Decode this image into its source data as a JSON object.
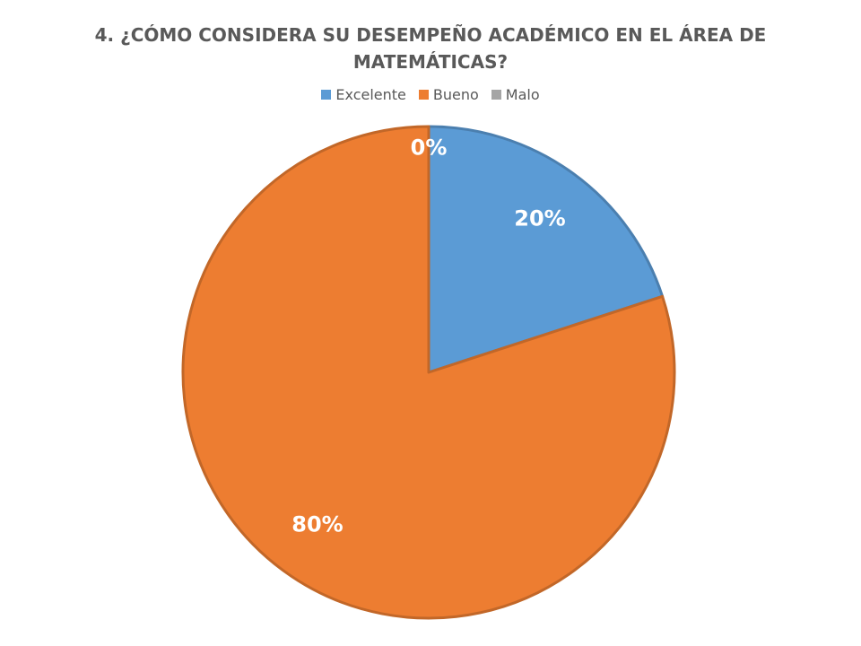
{
  "chart_data": {
    "type": "pie",
    "title": "4. ¿CÓMO CONSIDERA SU DESEMPEÑO ACADÉMICO EN EL ÁREA DE MATEMÁTICAS?",
    "categories": [
      "Excelente",
      "Bueno",
      "Malo"
    ],
    "values": [
      20,
      80,
      0
    ],
    "data_labels": [
      "20%",
      "80%",
      "0%"
    ],
    "colors": [
      "#5B9BD5",
      "#ED7D31",
      "#A5A5A5"
    ],
    "legend_position": "top"
  }
}
